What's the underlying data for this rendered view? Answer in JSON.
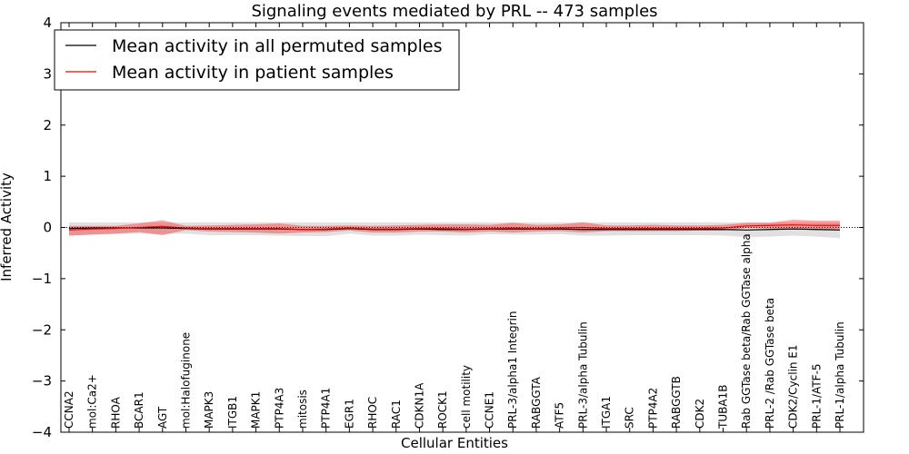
{
  "chart_data": {
    "type": "line",
    "title": "Signaling events mediated by PRL -- 473 samples",
    "xlabel": "Cellular Entities",
    "ylabel": "Inferred Activity",
    "ylim": [
      -4,
      4
    ],
    "yticks": [
      "4",
      "3",
      "2",
      "1",
      "0",
      "−1",
      "−2",
      "−3",
      "−4"
    ],
    "ytick_values": [
      4,
      3,
      2,
      1,
      0,
      -1,
      -2,
      -3,
      -4
    ],
    "grid": false,
    "legend_position": "top-left",
    "categories": [
      "CCNA2",
      "mol:Ca2+",
      "RHOA",
      "BCAR1",
      "AGT",
      "mol:Halofuginone",
      "MAPK3",
      "ITGB1",
      "MAPK1",
      "PTP4A3",
      "mitosis",
      "PTP4A1",
      "EGR1",
      "RHOC",
      "RAC1",
      "CDKN1A",
      "ROCK1",
      "cell motility",
      "CCNE1",
      "PRL-3/alpha1 Integrin",
      "RABGGTA",
      "ATF5",
      "PRL-3/alpha Tubulin",
      "ITGA1",
      "SRC",
      "PTP4A2",
      "RABGGTB",
      "CDK2",
      "TUBA1B",
      "Rab GGTase beta/Rab GGTase alpha",
      "PRL-2 /Rab GGTase beta",
      "CDK2/Cyclin E1",
      "PRL-1/ATF-5",
      "PRL-1/alpha Tubulin"
    ],
    "series": [
      {
        "name": "Mean activity in all permuted samples",
        "color": "#000000",
        "values": [
          -0.02,
          -0.01,
          -0.01,
          -0.01,
          -0.01,
          -0.02,
          -0.03,
          -0.03,
          -0.03,
          -0.03,
          -0.04,
          -0.04,
          -0.02,
          -0.04,
          -0.04,
          -0.03,
          -0.04,
          -0.04,
          -0.03,
          -0.03,
          -0.03,
          -0.03,
          -0.04,
          -0.04,
          -0.04,
          -0.04,
          -0.04,
          -0.04,
          -0.04,
          -0.05,
          -0.04,
          -0.03,
          -0.04,
          -0.05
        ],
        "band_upper": [
          0.1,
          0.1,
          0.1,
          0.1,
          0.1,
          0.1,
          0.1,
          0.1,
          0.1,
          0.1,
          0.1,
          0.1,
          0.1,
          0.1,
          0.1,
          0.1,
          0.1,
          0.1,
          0.1,
          0.1,
          0.1,
          0.1,
          0.1,
          0.1,
          0.1,
          0.1,
          0.1,
          0.1,
          0.1,
          0.1,
          0.1,
          0.1,
          0.1,
          0.1
        ],
        "band_lower": [
          -0.16,
          -0.14,
          -0.13,
          -0.12,
          -0.13,
          -0.12,
          -0.15,
          -0.15,
          -0.15,
          -0.16,
          -0.17,
          -0.17,
          -0.12,
          -0.16,
          -0.16,
          -0.14,
          -0.15,
          -0.16,
          -0.13,
          -0.14,
          -0.14,
          -0.13,
          -0.16,
          -0.16,
          -0.15,
          -0.15,
          -0.15,
          -0.15,
          -0.16,
          -0.19,
          -0.18,
          -0.16,
          -0.18,
          -0.21
        ]
      },
      {
        "name": "Mean activity in patient samples",
        "color": "#ff0000",
        "values": [
          -0.05,
          -0.03,
          -0.02,
          0.0,
          0.02,
          -0.01,
          -0.02,
          -0.02,
          -0.02,
          -0.02,
          -0.04,
          -0.03,
          -0.01,
          -0.03,
          -0.03,
          -0.02,
          -0.02,
          -0.03,
          -0.02,
          -0.01,
          -0.02,
          -0.01,
          0.0,
          -0.02,
          -0.02,
          -0.02,
          -0.02,
          -0.02,
          -0.01,
          0.03,
          0.04,
          0.05,
          0.04,
          0.04
        ],
        "band_upper": [
          0.03,
          0.03,
          0.03,
          0.08,
          0.14,
          0.03,
          0.04,
          0.05,
          0.06,
          0.08,
          0.03,
          0.03,
          0.04,
          0.03,
          0.04,
          0.05,
          0.06,
          0.06,
          0.05,
          0.09,
          0.05,
          0.06,
          0.1,
          0.04,
          0.04,
          0.05,
          0.04,
          0.04,
          0.05,
          0.09,
          0.09,
          0.15,
          0.13,
          0.13
        ],
        "band_lower": [
          -0.16,
          -0.14,
          -0.12,
          -0.09,
          -0.15,
          -0.05,
          -0.08,
          -0.09,
          -0.1,
          -0.12,
          -0.1,
          -0.09,
          -0.06,
          -0.1,
          -0.1,
          -0.08,
          -0.08,
          -0.1,
          -0.08,
          -0.1,
          -0.08,
          -0.07,
          -0.1,
          -0.07,
          -0.07,
          -0.07,
          -0.07,
          -0.06,
          -0.06,
          -0.01,
          -0.02,
          -0.04,
          -0.04,
          -0.04
        ]
      }
    ]
  }
}
